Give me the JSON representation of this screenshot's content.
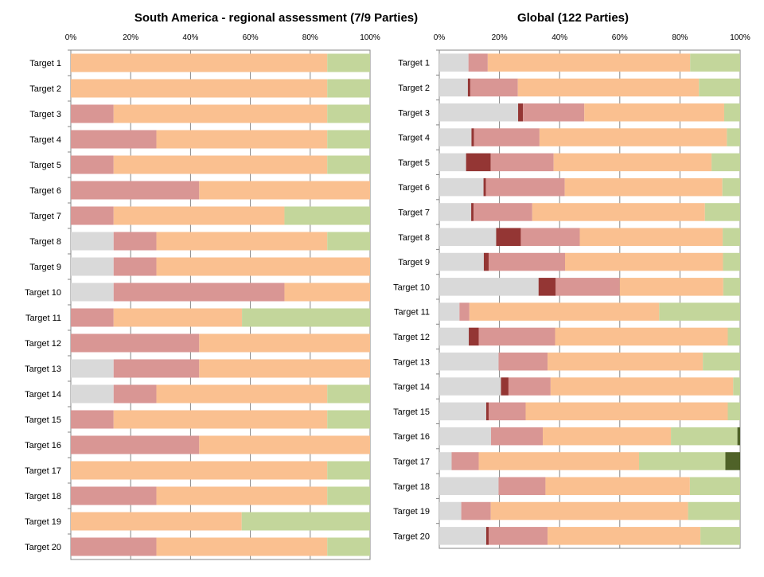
{
  "colors": {
    "grey": "#d9d9d9",
    "dark_red": "#943634",
    "pink": "#d99694",
    "orange": "#fac090",
    "green": "#c3d69b",
    "dark_green": "#4f6228"
  },
  "chart_data": [
    {
      "type": "bar",
      "orientation": "horizontal",
      "stacked": true,
      "title": "South America - regional assessment (7/9 Parties)",
      "x_ticks": [
        "0%",
        "20%",
        "40%",
        "60%",
        "80%",
        "100%"
      ],
      "xlim": [
        0,
        100
      ],
      "grid": true,
      "categories": [
        "Target 1",
        "Target 2",
        "Target 3",
        "Target 4",
        "Target 5",
        "Target 6",
        "Target 7",
        "Target 8",
        "Target 9",
        "Target 10",
        "Target 11",
        "Target 12",
        "Target 13",
        "Target 14",
        "Target 15",
        "Target 16",
        "Target 17",
        "Target 18",
        "Target 19",
        "Target 20"
      ],
      "series": [
        {
          "color": "grey",
          "values": [
            0,
            0,
            0,
            0,
            0,
            0,
            0,
            14.3,
            14.3,
            14.3,
            0,
            0,
            14.3,
            14.3,
            0,
            0,
            0,
            0,
            0,
            0
          ]
        },
        {
          "color": "dark_red",
          "values": [
            0,
            0,
            0,
            0,
            0,
            0,
            0,
            0,
            0,
            0,
            0,
            0,
            0,
            0,
            0,
            0,
            0,
            0,
            0,
            0
          ]
        },
        {
          "color": "pink",
          "values": [
            0,
            0,
            14.3,
            28.6,
            14.3,
            42.9,
            14.3,
            14.3,
            14.3,
            57.1,
            14.3,
            42.9,
            28.6,
            14.3,
            14.3,
            42.9,
            0,
            28.6,
            0,
            28.6
          ]
        },
        {
          "color": "orange",
          "values": [
            85.7,
            85.7,
            71.4,
            57.1,
            71.4,
            57.1,
            57.1,
            57.1,
            71.4,
            28.6,
            42.9,
            57.1,
            57.1,
            57.1,
            71.4,
            57.1,
            85.7,
            57.1,
            57.1,
            57.1
          ]
        },
        {
          "color": "green",
          "values": [
            14.3,
            14.3,
            14.3,
            14.3,
            14.3,
            0,
            28.6,
            14.3,
            0,
            0,
            42.9,
            0,
            0,
            14.3,
            14.3,
            0,
            14.3,
            14.3,
            42.9,
            14.3
          ]
        },
        {
          "color": "dark_green",
          "values": [
            0,
            0,
            0,
            0,
            0,
            0,
            0,
            0,
            0,
            0,
            0,
            0,
            0,
            0,
            0,
            0,
            0,
            0,
            0,
            0
          ]
        }
      ]
    },
    {
      "type": "bar",
      "orientation": "horizontal",
      "stacked": true,
      "title": "Global  (122 Parties)",
      "x_ticks": [
        "0%",
        "20%",
        "40%",
        "60%",
        "80%",
        "100%"
      ],
      "xlim": [
        0,
        100
      ],
      "grid": true,
      "categories": [
        "Target 1",
        "Target 2",
        "Target 3",
        "Target 4",
        "Target 5",
        "Target 6",
        "Target 7",
        "Target 8",
        "Target 9",
        "Target 10",
        "Target 11",
        "Target 12",
        "Target 13",
        "Target 14",
        "Target 15",
        "Target 16",
        "Target 17",
        "Target 18",
        "Target 19",
        "Target 20"
      ],
      "series": [
        {
          "color": "grey",
          "values": [
            9.7,
            9.5,
            26.2,
            10.7,
            8.9,
            14.7,
            10.6,
            18.9,
            14.8,
            33.0,
            6.7,
            9.8,
            19.7,
            20.5,
            15.6,
            17.2,
            4.1,
            19.7,
            7.3,
            15.6
          ]
        },
        {
          "color": "dark_red",
          "values": [
            0,
            0.8,
            1.6,
            0.8,
            8.2,
            0.8,
            0.8,
            8.2,
            1.6,
            5.7,
            0,
            3.3,
            0,
            2.5,
            0.8,
            0,
            0,
            0,
            0,
            0.8
          ]
        },
        {
          "color": "pink",
          "values": [
            6.4,
            15.8,
            20.4,
            21.8,
            20.9,
            26.2,
            19.5,
            19.6,
            25.4,
            21.3,
            3.3,
            25.4,
            16.3,
            14.0,
            12.3,
            17.2,
            9.0,
            15.6,
            9.8,
            19.6
          ]
        },
        {
          "color": "orange",
          "values": [
            67.3,
            60.2,
            46.5,
            62.3,
            52.5,
            52.4,
            57.4,
            47.5,
            52.5,
            34.4,
            63.1,
            57.4,
            51.6,
            60.7,
            67.2,
            42.6,
            53.3,
            48.0,
            65.6,
            50.8
          ]
        },
        {
          "color": "green",
          "values": [
            16.6,
            13.7,
            5.3,
            4.4,
            9.5,
            5.9,
            11.7,
            5.8,
            5.7,
            5.6,
            26.9,
            4.1,
            12.4,
            2.3,
            4.1,
            22.1,
            28.7,
            16.7,
            17.3,
            13.2
          ]
        },
        {
          "color": "dark_green",
          "values": [
            0,
            0,
            0,
            0,
            0,
            0,
            0,
            0,
            0,
            0,
            0,
            0,
            0,
            0,
            0,
            0.9,
            4.9,
            0,
            0,
            0
          ]
        }
      ]
    }
  ]
}
